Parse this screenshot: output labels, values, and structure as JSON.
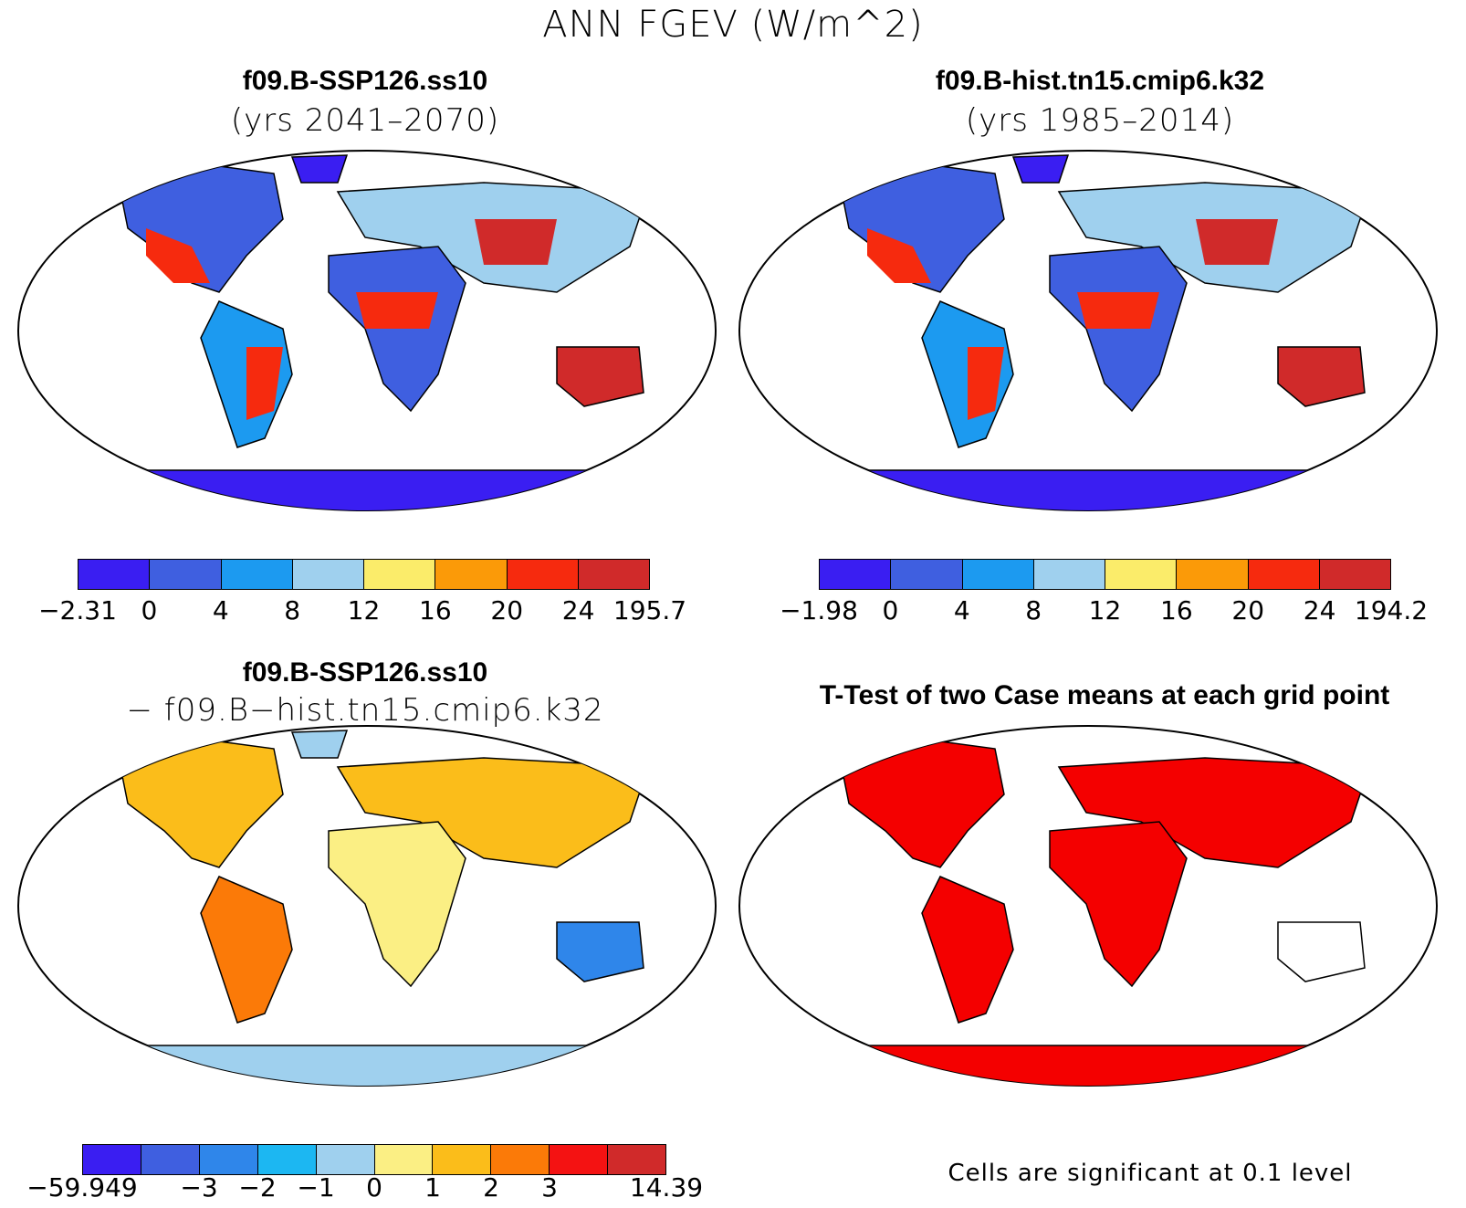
{
  "title": "ANN FGEV (W/m^2)",
  "panels": [
    {
      "id": "case1",
      "title": "f09.B-SSP126.ss10",
      "subtitle": "(yrs 2041–2070)",
      "colorbar": {
        "colors": [
          "#3a1ef2",
          "#3f5fe0",
          "#1c9af0",
          "#9fd0ee",
          "#fbec6a",
          "#fb9a08",
          "#f62a0e",
          "#d02a2a"
        ],
        "labels": [
          "−2.31",
          "0",
          "4",
          "8",
          "12",
          "16",
          "20",
          "24",
          "195.7"
        ]
      }
    },
    {
      "id": "case2",
      "title": "f09.B-hist.tn15.cmip6.k32",
      "subtitle": "(yrs 1985–2014)",
      "colorbar": {
        "colors": [
          "#3a1ef2",
          "#3f5fe0",
          "#1c9af0",
          "#9fd0ee",
          "#fbec6a",
          "#fb9a08",
          "#f62a0e",
          "#d02a2a"
        ],
        "labels": [
          "−1.98",
          "0",
          "4",
          "8",
          "12",
          "16",
          "20",
          "24",
          "194.2"
        ]
      }
    },
    {
      "id": "diff",
      "title": "f09.B-SSP126.ss10",
      "subtitle": "− f09.B−hist.tn15.cmip6.k32",
      "colorbar": {
        "colors": [
          "#3a1ef2",
          "#3f5fe0",
          "#2f86ea",
          "#1cb7f2",
          "#9fd0ee",
          "#fbef84",
          "#fbbd1a",
          "#fb7a08",
          "#f41212",
          "#d02a2a"
        ],
        "labels": [
          "−59.949",
          "−3",
          "−2",
          "−1",
          "0",
          "1",
          "2",
          "3",
          "14.39"
        ],
        "label_positions": [
          0,
          2,
          3,
          4,
          5,
          6,
          7,
          8,
          10
        ]
      }
    },
    {
      "id": "ttest",
      "title": "T-Test of two Case means at each grid point",
      "footnote": "Cells are significant at 0.1 level",
      "color": "#f40000"
    }
  ]
}
